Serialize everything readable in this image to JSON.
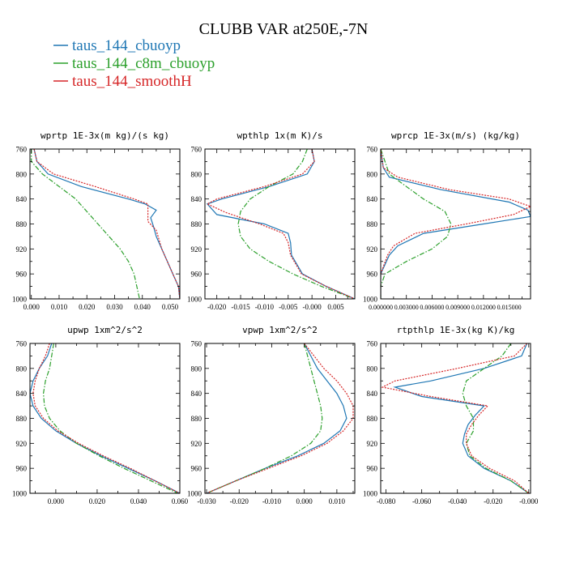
{
  "figure": {
    "title": "CLUBB VAR at250E,-7N",
    "legend": [
      {
        "label": "taus_144_cbuoyp",
        "color": "#1f77b4",
        "dash": "solid"
      },
      {
        "label": "taus_144_c8m_cbuoyp",
        "color": "#2ca02c",
        "dash": "dashdot"
      },
      {
        "label": "taus_144_smoothH",
        "color": "#d62728",
        "dash": "dotted"
      }
    ]
  },
  "chart_data": [
    {
      "type": "line",
      "title": "wprtp  1E-3x(m kg)/(s kg)",
      "xlim": [
        -0.0005,
        0.0535
      ],
      "ylim": [
        760,
        1000
      ],
      "y_inverted": true,
      "xticks": [
        "0.000",
        "0.010",
        "0.020",
        "0.030",
        "0.040",
        "0.050"
      ],
      "xtick_values": [
        0,
        0.01,
        0.02,
        0.03,
        0.04,
        0.05
      ],
      "yticks": [
        "760",
        "800",
        "840",
        "880",
        "920",
        "960",
        "1000"
      ],
      "series": [
        {
          "name": "taus_144_cbuoyp",
          "y": [
            760,
            780,
            800,
            820,
            840,
            848,
            858,
            870,
            884,
            900,
            920,
            940,
            960,
            980,
            1000
          ],
          "x": [
            0.001,
            0.002,
            0.006,
            0.018,
            0.035,
            0.041,
            0.045,
            0.043,
            0.044,
            0.045,
            0.047,
            0.049,
            0.051,
            0.053,
            0.0535
          ]
        },
        {
          "name": "taus_144_c8m_cbuoyp",
          "y": [
            760,
            780,
            800,
            820,
            840,
            860,
            880,
            900,
            920,
            940,
            960,
            980,
            1000
          ],
          "x": [
            0.0,
            0.0,
            0.004,
            0.01,
            0.016,
            0.02,
            0.024,
            0.028,
            0.032,
            0.035,
            0.037,
            0.038,
            0.039
          ]
        },
        {
          "name": "taus_144_smoothH",
          "y": [
            760,
            780,
            800,
            820,
            840,
            848,
            862,
            876,
            890,
            905,
            920,
            940,
            960,
            980,
            1000
          ],
          "x": [
            0.001,
            0.002,
            0.008,
            0.023,
            0.037,
            0.042,
            0.042,
            0.042,
            0.045,
            0.046,
            0.047,
            0.049,
            0.051,
            0.053,
            0.0535
          ]
        }
      ]
    },
    {
      "type": "line",
      "title": "wpthlp  1x(m K)/s",
      "xlim": [
        -0.0225,
        0.009
      ],
      "ylim": [
        760,
        1000
      ],
      "y_inverted": true,
      "xticks": [
        "-0.020",
        "-0.015",
        "-0.010",
        "-0.005",
        "-0.000",
        "0.005"
      ],
      "xtick_values": [
        -0.02,
        -0.015,
        -0.01,
        -0.005,
        0,
        0.005
      ],
      "yticks": [
        "760",
        "800",
        "840",
        "880",
        "920",
        "960",
        "1000"
      ],
      "series": [
        {
          "name": "taus_144_cbuoyp",
          "y": [
            760,
            780,
            800,
            820,
            840,
            848,
            865,
            880,
            895,
            910,
            930,
            960,
            980,
            1000
          ],
          "x": [
            0.0,
            0.0005,
            -0.001,
            -0.009,
            -0.019,
            -0.022,
            -0.02,
            -0.01,
            -0.005,
            -0.0045,
            -0.0043,
            -0.002,
            0.003,
            0.009
          ]
        },
        {
          "name": "taus_144_c8m_cbuoyp",
          "y": [
            760,
            780,
            800,
            820,
            840,
            860,
            880,
            900,
            920,
            940,
            960,
            980,
            1000
          ],
          "x": [
            -0.001,
            -0.002,
            -0.004,
            -0.009,
            -0.013,
            -0.015,
            -0.0155,
            -0.015,
            -0.013,
            -0.009,
            -0.004,
            0.002,
            0.009
          ]
        },
        {
          "name": "taus_144_smoothH",
          "y": [
            760,
            780,
            800,
            820,
            840,
            848,
            862,
            880,
            895,
            910,
            930,
            960,
            980,
            1000
          ],
          "x": [
            0.0,
            0.0005,
            -0.002,
            -0.01,
            -0.02,
            -0.022,
            -0.018,
            -0.011,
            -0.006,
            -0.005,
            -0.0045,
            -0.0022,
            0.003,
            0.009
          ]
        }
      ]
    },
    {
      "type": "line",
      "title": "wprcp  1E-3x(m/s) (kg/kg)",
      "xlim": [
        0,
        0.0175
      ],
      "ylim": [
        760,
        1000
      ],
      "y_inverted": true,
      "xticks": [
        "0.000000",
        "0.003000",
        "0.006000",
        "0.009000",
        "0.012000",
        "0.015000"
      ],
      "xtick_values": [
        0,
        0.003,
        0.006,
        0.009,
        0.012,
        0.015
      ],
      "yticks": [
        "760",
        "800",
        "840",
        "880",
        "920",
        "960",
        "1000"
      ],
      "series": [
        {
          "name": "taus_144_cbuoyp",
          "y": [
            760,
            790,
            805,
            825,
            845,
            858,
            868,
            880,
            895,
            915,
            930,
            945,
            960,
            1000
          ],
          "x": [
            0.0,
            0.0003,
            0.001,
            0.007,
            0.015,
            0.0172,
            0.0175,
            0.012,
            0.005,
            0.002,
            0.001,
            0.0005,
            0.0,
            0.0
          ]
        },
        {
          "name": "taus_144_c8m_cbuoyp",
          "y": [
            760,
            780,
            800,
            820,
            840,
            860,
            880,
            900,
            920,
            940,
            960,
            980,
            1000
          ],
          "x": [
            0.0,
            0.0005,
            0.001,
            0.003,
            0.005,
            0.0075,
            0.0082,
            0.0078,
            0.006,
            0.003,
            0.0005,
            0.0,
            0.0
          ]
        },
        {
          "name": "taus_144_smoothH",
          "y": [
            760,
            790,
            805,
            825,
            840,
            852,
            865,
            880,
            895,
            915,
            930,
            945,
            960,
            1000
          ],
          "x": [
            0.0,
            0.0003,
            0.002,
            0.008,
            0.015,
            0.0175,
            0.0155,
            0.01,
            0.004,
            0.0015,
            0.0008,
            0.0004,
            0.0,
            0.0
          ]
        }
      ]
    },
    {
      "type": "line",
      "title": "upwp  1xm^2/s^2",
      "xlim": [
        -0.0125,
        0.06
      ],
      "ylim": [
        760,
        1000
      ],
      "y_inverted": true,
      "xticks": [
        "0.000",
        "0.020",
        "0.040",
        "0.060"
      ],
      "xtick_values": [
        0,
        0.02,
        0.04,
        0.06
      ],
      "yticks": [
        "760",
        "800",
        "840",
        "880",
        "920",
        "960",
        "1000"
      ],
      "series": [
        {
          "name": "taus_144_cbuoyp",
          "y": [
            760,
            780,
            800,
            820,
            840,
            860,
            880,
            900,
            920,
            940,
            960,
            980,
            1000
          ],
          "x": [
            -0.002,
            -0.004,
            -0.008,
            -0.011,
            -0.0125,
            -0.011,
            -0.007,
            0.0,
            0.01,
            0.022,
            0.035,
            0.048,
            0.06
          ]
        },
        {
          "name": "taus_144_c8m_cbuoyp",
          "y": [
            760,
            780,
            800,
            820,
            840,
            860,
            880,
            900,
            920,
            940,
            960,
            980,
            1000
          ],
          "x": [
            -0.001,
            -0.002,
            -0.003,
            -0.005,
            -0.006,
            -0.0055,
            -0.003,
            0.002,
            0.01,
            0.021,
            0.033,
            0.046,
            0.059
          ]
        },
        {
          "name": "taus_144_smoothH",
          "y": [
            760,
            780,
            800,
            820,
            840,
            860,
            880,
            900,
            920,
            940,
            960,
            980,
            1000
          ],
          "x": [
            -0.003,
            -0.005,
            -0.008,
            -0.01,
            -0.011,
            -0.01,
            -0.006,
            0.001,
            0.011,
            0.023,
            0.036,
            0.048,
            0.06
          ]
        }
      ]
    },
    {
      "type": "line",
      "title": "vpwp  1xm^2/s^2",
      "xlim": [
        -0.0305,
        0.0155
      ],
      "ylim": [
        760,
        1000
      ],
      "y_inverted": true,
      "xticks": [
        "-0.030",
        "-0.020",
        "-0.010",
        "0.000",
        "0.010"
      ],
      "xtick_values": [
        -0.03,
        -0.02,
        -0.01,
        0,
        0.01
      ],
      "yticks": [
        "760",
        "800",
        "840",
        "880",
        "920",
        "960",
        "1000"
      ],
      "series": [
        {
          "name": "taus_144_cbuoyp",
          "y": [
            760,
            780,
            800,
            820,
            840,
            860,
            880,
            900,
            920,
            940,
            960,
            980,
            1000
          ],
          "x": [
            0.0,
            0.002,
            0.004,
            0.007,
            0.01,
            0.012,
            0.013,
            0.011,
            0.006,
            -0.002,
            -0.012,
            -0.021,
            -0.03
          ]
        },
        {
          "name": "taus_144_c8m_cbuoyp",
          "y": [
            760,
            780,
            800,
            820,
            840,
            860,
            880,
            900,
            920,
            940,
            960,
            980,
            1000
          ],
          "x": [
            0.0,
            0.001,
            0.002,
            0.003,
            0.004,
            0.005,
            0.0055,
            0.005,
            0.002,
            -0.004,
            -0.012,
            -0.021,
            -0.03
          ]
        },
        {
          "name": "taus_144_smoothH",
          "y": [
            760,
            780,
            800,
            820,
            840,
            860,
            880,
            900,
            920,
            940,
            960,
            980,
            1000
          ],
          "x": [
            0.0,
            0.003,
            0.006,
            0.01,
            0.013,
            0.015,
            0.015,
            0.012,
            0.007,
            -0.001,
            -0.011,
            -0.021,
            -0.03
          ]
        }
      ]
    },
    {
      "type": "line",
      "title": "rtpthlp  1E-3x(kg K)/kg",
      "xlim": [
        -0.083,
        0.001
      ],
      "ylim": [
        760,
        1000
      ],
      "y_inverted": true,
      "xticks": [
        "-0.080",
        "-0.060",
        "-0.040",
        "-0.020",
        "-0.000"
      ],
      "xtick_values": [
        -0.08,
        -0.06,
        -0.04,
        -0.02,
        0
      ],
      "yticks": [
        "760",
        "800",
        "840",
        "880",
        "920",
        "960",
        "1000"
      ],
      "series": [
        {
          "name": "taus_144_cbuoyp",
          "y": [
            760,
            780,
            800,
            820,
            830,
            845,
            860,
            875,
            890,
            905,
            920,
            940,
            960,
            980,
            1000
          ],
          "x": [
            -0.001,
            -0.004,
            -0.025,
            -0.055,
            -0.075,
            -0.06,
            -0.025,
            -0.03,
            -0.034,
            -0.036,
            -0.037,
            -0.034,
            -0.025,
            -0.01,
            0.0
          ]
        },
        {
          "name": "taus_144_c8m_cbuoyp",
          "y": [
            760,
            780,
            800,
            820,
            840,
            860,
            880,
            900,
            920,
            940,
            960,
            980,
            1000
          ],
          "x": [
            -0.01,
            -0.015,
            -0.025,
            -0.035,
            -0.037,
            -0.035,
            -0.031,
            -0.031,
            -0.035,
            -0.033,
            -0.024,
            -0.01,
            0.0
          ]
        },
        {
          "name": "taus_144_smoothH",
          "y": [
            760,
            780,
            800,
            820,
            830,
            845,
            860,
            875,
            890,
            905,
            920,
            940,
            960,
            980,
            1000
          ],
          "x": [
            -0.001,
            -0.008,
            -0.04,
            -0.075,
            -0.082,
            -0.055,
            -0.023,
            -0.028,
            -0.032,
            -0.035,
            -0.035,
            -0.032,
            -0.022,
            -0.008,
            0.0
          ]
        }
      ]
    }
  ]
}
